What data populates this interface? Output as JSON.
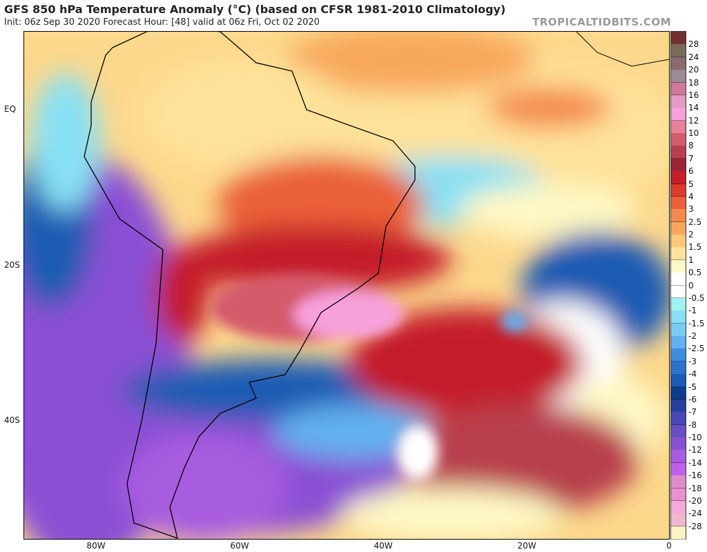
{
  "header": {
    "title": "GFS 850 hPa Temperature Anomaly (°C) (based on CFSR 1981-2010 Climatology)",
    "subtitle": "Init: 06z Sep 30 2020   Forecast Hour: [48]   valid at 06z Fri, Oct 02 2020",
    "site": "TROPICALTIDBITS.COM"
  },
  "axes": {
    "x_labels": [
      "80W",
      "60W",
      "40W",
      "20W",
      "0"
    ],
    "y_labels": [
      "EQ",
      "20S",
      "40S"
    ]
  },
  "colorbar": {
    "labels": [
      "28",
      "24",
      "20",
      "18",
      "16",
      "14",
      "12",
      "10",
      "8",
      "7",
      "6",
      "5",
      "4",
      "3",
      "2.5",
      "2",
      "1.5",
      "1",
      "0.5",
      "0",
      "-0.5",
      "-1",
      "-1.5",
      "-2",
      "-2.5",
      "-3",
      "-4",
      "-5",
      "-6",
      "-7",
      "-8",
      "-10",
      "-12",
      "-14",
      "-16",
      "-18",
      "-20",
      "-24",
      "-28"
    ],
    "colors": [
      "#74302e",
      "#7a6a5a",
      "#8a6a6e",
      "#9c8a94",
      "#d2789a",
      "#e49ac4",
      "#f8a0dc",
      "#e88098",
      "#d45a6c",
      "#b8404e",
      "#9a2434",
      "#c41e2a",
      "#dc3c2c",
      "#ea6038",
      "#f48a4c",
      "#f8a85c",
      "#fcc878",
      "#fee29a",
      "#fef8c4",
      "#ffffff",
      "#ffffff",
      "#9ef4f0",
      "#88e0f4",
      "#78ccf4",
      "#62b0f0",
      "#3c8ce0",
      "#2a74cc",
      "#1c5cb4",
      "#0c3c8c",
      "#2a40a0",
      "#4a48b8",
      "#6a4cc4",
      "#8a50d4",
      "#a85ce0",
      "#c060e8",
      "#e08ccc",
      "#e890d0",
      "#f8a8d8",
      "#f0b8cc",
      "#fcf4c0"
    ]
  }
}
